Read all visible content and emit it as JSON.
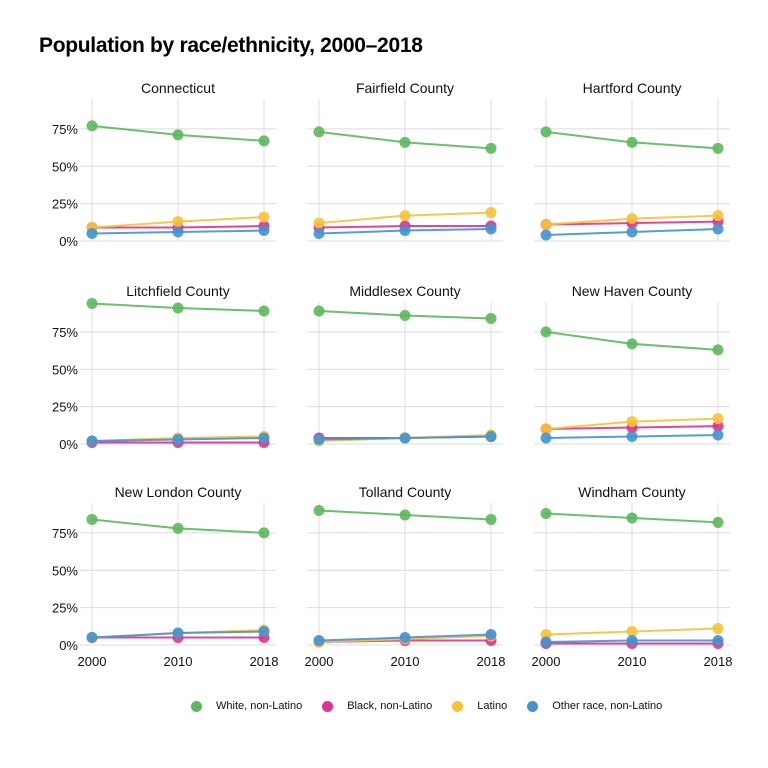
{
  "title": "Population by race/ethnicity, 2000–2018",
  "chart_data": {
    "type": "line",
    "x": [
      "2000",
      "2010",
      "2018"
    ],
    "ylim": [
      0,
      0.95
    ],
    "y_ticks": [
      0,
      0.25,
      0.5,
      0.75
    ],
    "y_tick_labels": [
      "0%",
      "25%",
      "50%",
      "75%"
    ],
    "grid": true,
    "legend_position": "bottom",
    "series_names": [
      "White, non-Latino",
      "Black, non-Latino",
      "Latino",
      "Other race, non-Latino"
    ],
    "colors": [
      "#5cb85c",
      "#e0318c",
      "#f7c23a",
      "#4393d0"
    ],
    "facets": [
      {
        "title": "Connecticut",
        "series": [
          {
            "name": "White, non-Latino",
            "values": [
              0.77,
              0.71,
              0.67
            ]
          },
          {
            "name": "Black, non-Latino",
            "values": [
              0.09,
              0.09,
              0.1
            ]
          },
          {
            "name": "Latino",
            "values": [
              0.09,
              0.13,
              0.16
            ]
          },
          {
            "name": "Other race, non-Latino",
            "values": [
              0.05,
              0.06,
              0.07
            ]
          }
        ]
      },
      {
        "title": "Fairfield County",
        "series": [
          {
            "name": "White, non-Latino",
            "values": [
              0.73,
              0.66,
              0.62
            ]
          },
          {
            "name": "Black, non-Latino",
            "values": [
              0.09,
              0.1,
              0.1
            ]
          },
          {
            "name": "Latino",
            "values": [
              0.12,
              0.17,
              0.19
            ]
          },
          {
            "name": "Other race, non-Latino",
            "values": [
              0.05,
              0.07,
              0.08
            ]
          }
        ]
      },
      {
        "title": "Hartford County",
        "series": [
          {
            "name": "White, non-Latino",
            "values": [
              0.73,
              0.66,
              0.62
            ]
          },
          {
            "name": "Black, non-Latino",
            "values": [
              0.11,
              0.12,
              0.13
            ]
          },
          {
            "name": "Latino",
            "values": [
              0.11,
              0.15,
              0.17
            ]
          },
          {
            "name": "Other race, non-Latino",
            "values": [
              0.04,
              0.06,
              0.08
            ]
          }
        ]
      },
      {
        "title": "Litchfield County",
        "series": [
          {
            "name": "White, non-Latino",
            "values": [
              0.94,
              0.91,
              0.89
            ]
          },
          {
            "name": "Black, non-Latino",
            "values": [
              0.01,
              0.01,
              0.01
            ]
          },
          {
            "name": "Latino",
            "values": [
              0.02,
              0.04,
              0.05
            ]
          },
          {
            "name": "Other race, non-Latino",
            "values": [
              0.02,
              0.03,
              0.04
            ]
          }
        ]
      },
      {
        "title": "Middlesex County",
        "series": [
          {
            "name": "White, non-Latino",
            "values": [
              0.89,
              0.86,
              0.84
            ]
          },
          {
            "name": "Black, non-Latino",
            "values": [
              0.04,
              0.04,
              0.05
            ]
          },
          {
            "name": "Latino",
            "values": [
              0.02,
              0.04,
              0.06
            ]
          },
          {
            "name": "Other race, non-Latino",
            "values": [
              0.03,
              0.04,
              0.05
            ]
          }
        ]
      },
      {
        "title": "New Haven County",
        "series": [
          {
            "name": "White, non-Latino",
            "values": [
              0.75,
              0.67,
              0.63
            ]
          },
          {
            "name": "Black, non-Latino",
            "values": [
              0.1,
              0.11,
              0.12
            ]
          },
          {
            "name": "Latino",
            "values": [
              0.1,
              0.15,
              0.17
            ]
          },
          {
            "name": "Other race, non-Latino",
            "values": [
              0.04,
              0.05,
              0.06
            ]
          }
        ]
      },
      {
        "title": "New London County",
        "series": [
          {
            "name": "White, non-Latino",
            "values": [
              0.84,
              0.78,
              0.75
            ]
          },
          {
            "name": "Black, non-Latino",
            "values": [
              0.05,
              0.05,
              0.05
            ]
          },
          {
            "name": "Latino",
            "values": [
              0.05,
              0.08,
              0.1
            ]
          },
          {
            "name": "Other race, non-Latino",
            "values": [
              0.05,
              0.08,
              0.09
            ]
          }
        ]
      },
      {
        "title": "Tolland County",
        "series": [
          {
            "name": "White, non-Latino",
            "values": [
              0.9,
              0.87,
              0.84
            ]
          },
          {
            "name": "Black, non-Latino",
            "values": [
              0.02,
              0.03,
              0.03
            ]
          },
          {
            "name": "Latino",
            "values": [
              0.02,
              0.04,
              0.06
            ]
          },
          {
            "name": "Other race, non-Latino",
            "values": [
              0.03,
              0.05,
              0.07
            ]
          }
        ]
      },
      {
        "title": "Windham County",
        "series": [
          {
            "name": "White, non-Latino",
            "values": [
              0.88,
              0.85,
              0.82
            ]
          },
          {
            "name": "Black, non-Latino",
            "values": [
              0.01,
              0.01,
              0.01
            ]
          },
          {
            "name": "Latino",
            "values": [
              0.07,
              0.09,
              0.11
            ]
          },
          {
            "name": "Other race, non-Latino",
            "values": [
              0.02,
              0.03,
              0.03
            ]
          }
        ]
      }
    ]
  }
}
